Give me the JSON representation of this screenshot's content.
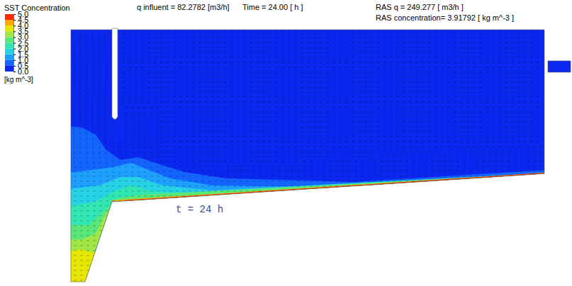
{
  "chart_data": {
    "type": "contour",
    "title": "SST Concentration",
    "annotations": [
      "q influent = 82.2782 [m3/h]",
      "Time = 24.00 [ h ]",
      "RAS q = 249.277 [ m3/h ]",
      "RAS concentration= 3.91792 [ kg m^-3 ]",
      "t = 24 h"
    ],
    "colorbar": {
      "label": "[kg m^-3]",
      "range": [
        0,
        5
      ],
      "ticks": [
        {
          "value": 0,
          "label": "0.0"
        },
        0.5,
        {
          "value": 1,
          "label": "1.0"
        },
        1.5,
        {
          "value": 2,
          "label": "2.0"
        },
        2.5,
        {
          "value": 3,
          "label": "3.0"
        },
        3.5,
        {
          "value": 4,
          "label": "4.0"
        },
        4.5,
        {
          "value": 5,
          "label": "5.0"
        }
      ]
    },
    "levels": [
      0.25,
      0.75,
      1.25,
      1.75,
      2.25,
      2.75,
      3.25,
      3.75,
      4.25,
      4.75
    ]
  }
}
